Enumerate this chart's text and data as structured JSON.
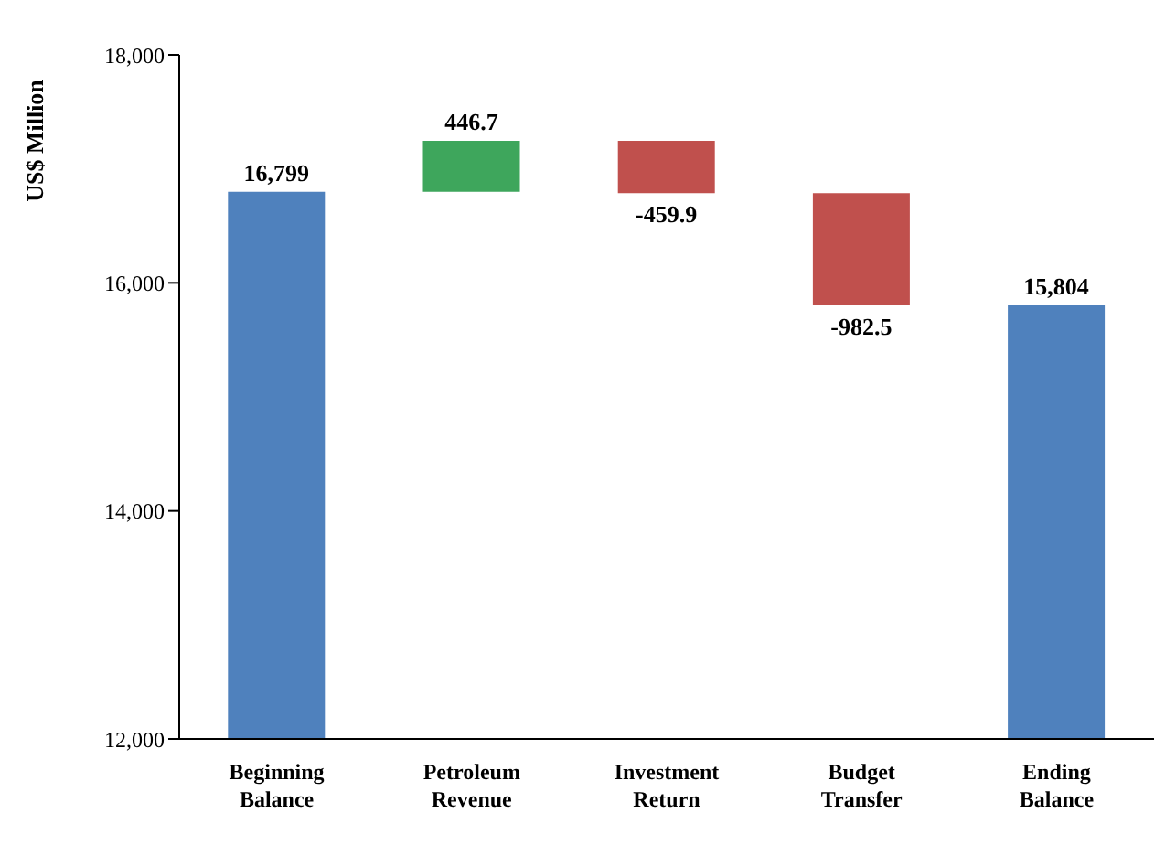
{
  "chart_data": {
    "type": "bar",
    "ylabel": "US$ Million",
    "categories": [
      "Beginning Balance",
      "Petroleum Revenue",
      "Investment Return",
      "Budget Transfer",
      "Ending Balance"
    ],
    "values": [
      16799,
      446.7,
      -459.9,
      -982.5,
      15804
    ],
    "base": [
      null,
      16799,
      17245.7,
      16785.8,
      null
    ],
    "colors": [
      "#4f81bd",
      "#3ea65c",
      "#c0504d",
      "#c0504d",
      "#4f81bd"
    ],
    "value_labels": [
      "16,799",
      "446.7",
      "-459.9",
      "-982.5",
      "15,804"
    ],
    "ylim": [
      12000,
      18000
    ],
    "yticks": [
      {
        "value": 12000,
        "label": "12,000"
      },
      {
        "value": 14000,
        "label": "14,000"
      },
      {
        "value": 16000,
        "label": "16,000"
      },
      {
        "value": 18000,
        "label": "18,000"
      }
    ],
    "grid": false,
    "legend": false
  }
}
